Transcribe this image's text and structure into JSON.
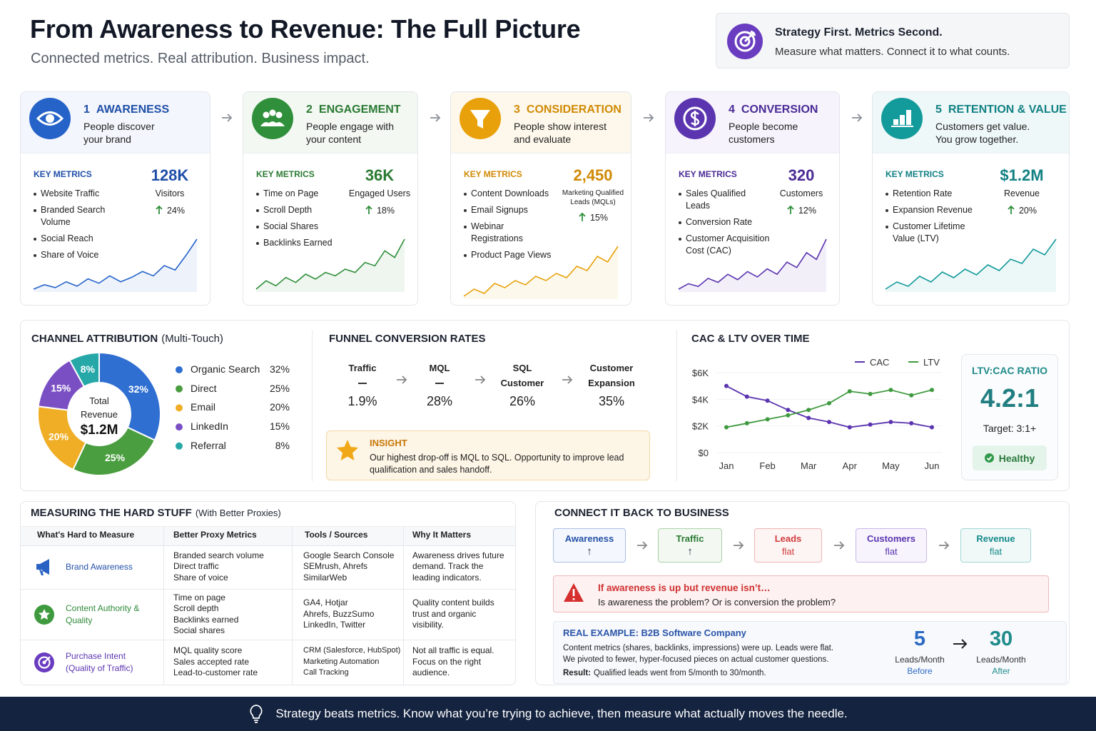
{
  "header": {
    "title": "From Awareness to Revenue: The Full Picture",
    "subtitle": "Connected metrics. Real attribution. Business impact."
  },
  "callout": {
    "title": "Strategy First. Metrics Second.",
    "text": "Measure what matters. Connect it to what counts."
  },
  "stages": [
    {
      "number": "1",
      "name": "AWARENESS",
      "description": [
        "People discover",
        "your brand"
      ],
      "metrics_label": "KEY METRICS",
      "metrics": [
        "Website Traffic",
        "Branded Search Volume",
        "Social Reach",
        "Share of Voice"
      ],
      "value": "128K",
      "value_label": "Visitors",
      "change": "24%",
      "trend": [
        12,
        18,
        14,
        22,
        16,
        26,
        20,
        30,
        22,
        28,
        36,
        30,
        44,
        38,
        58,
        80
      ]
    },
    {
      "number": "2",
      "name": "ENGAGEMENT",
      "description": [
        "People engage with",
        "your content"
      ],
      "metrics_label": "KEY METRICS",
      "metrics": [
        "Time on Page",
        "Scroll Depth",
        "Social Shares",
        "Backlinks Earned"
      ],
      "value": "36K",
      "value_label": "Engaged Users",
      "change": "18%",
      "trend": [
        10,
        20,
        14,
        24,
        18,
        28,
        22,
        30,
        26,
        34,
        30,
        42,
        38,
        56,
        48,
        70
      ]
    },
    {
      "number": "3",
      "name": "CONSIDERATION",
      "description": [
        "People show interest",
        "and evaluate"
      ],
      "metrics_label": "KEY METRICS",
      "metrics": [
        "Content Downloads",
        "Email Signups",
        "Webinar Registrations",
        "Product Page Views"
      ],
      "value": "2,450",
      "value_label": "Marketing Qualified Leads (MQLs)",
      "change": "15%",
      "trend": [
        8,
        18,
        12,
        26,
        20,
        30,
        24,
        36,
        30,
        40,
        34,
        50,
        44,
        64,
        56,
        78
      ]
    },
    {
      "number": "4",
      "name": "CONVERSION",
      "description": [
        "People become",
        "customers"
      ],
      "metrics_label": "KEY METRICS",
      "metrics": [
        "Sales Qualified Leads",
        "Conversion Rate",
        "Customer Acquisition Cost (CAC)"
      ],
      "value": "320",
      "value_label": "Customers",
      "change": "12%",
      "trend": [
        8,
        16,
        12,
        24,
        18,
        30,
        22,
        34,
        26,
        38,
        30,
        48,
        40,
        62,
        52,
        82
      ]
    },
    {
      "number": "5",
      "name": "RETENTION & VALUE",
      "description": [
        "Customers get value.",
        "You grow together."
      ],
      "metrics_label": "KEY METRICS",
      "metrics": [
        "Retention Rate",
        "Expansion Revenue",
        "Customer Lifetime Value (LTV)"
      ],
      "value": "$1.2M",
      "value_label": "Revenue",
      "change": "20%",
      "trend": [
        10,
        20,
        14,
        28,
        20,
        34,
        26,
        38,
        30,
        44,
        36,
        52,
        46,
        66,
        58,
        80
      ]
    }
  ],
  "attribution": {
    "type": "pie",
    "title": "CHANNEL ATTRIBUTION",
    "subtitle": "(Multi-Touch)",
    "center_label": "Total Revenue",
    "center_value": "$1.2M",
    "categories": [
      "Organic Search",
      "Direct",
      "Email",
      "LinkedIn",
      "Referral"
    ],
    "values": [
      32,
      25,
      20,
      15,
      8
    ],
    "value_labels": [
      "32%",
      "25%",
      "20%",
      "15%",
      "8%"
    ],
    "colors": [
      "#2f6fd1",
      "#4a9e3f",
      "#efae25",
      "#7a4fc4",
      "#27a8a8"
    ]
  },
  "funnel": {
    "title": "FUNNEL CONVERSION RATES",
    "steps": [
      {
        "label": "Traffic",
        "value": "1.9%"
      },
      {
        "label": "MQL",
        "value": "28%"
      },
      {
        "label": "SQL Customer",
        "value": "26%"
      },
      {
        "label": "Customer Expansion",
        "value": "35%"
      }
    ],
    "insight": {
      "label": "INSIGHT",
      "text": "Our highest drop-off is MQL to SQL. Opportunity to improve lead qualification and sales handoff."
    }
  },
  "cac_ltv": {
    "type": "line",
    "title": "CAC & LTV OVER TIME",
    "categories": [
      "Jan",
      null,
      "Feb",
      null,
      "Mar",
      null,
      "Apr",
      null,
      "May",
      null,
      "Jun"
    ],
    "series": [
      {
        "name": "CAC",
        "color": "#5b34b0",
        "values": [
          5000,
          4200,
          3900,
          3200,
          2600,
          2300,
          1900,
          2100,
          2300,
          2200,
          1900
        ]
      },
      {
        "name": "LTV",
        "color": "#3f9a3f",
        "values": [
          1900,
          2200,
          2500,
          2800,
          3200,
          3700,
          4600,
          4400,
          4700,
          4300,
          4700
        ]
      }
    ],
    "ylim": [
      0,
      6000
    ],
    "yticks": [
      {
        "value": 0,
        "label": "$0"
      },
      {
        "value": 2000,
        "label": "$2K"
      },
      {
        "value": 4000,
        "label": "$4K"
      },
      {
        "value": 6000,
        "label": "$6K"
      }
    ]
  },
  "ratio": {
    "title": "LTV:CAC RATIO",
    "value": "4.2:1",
    "target": "Target: 3:1+",
    "status": "Healthy"
  },
  "hard_stuff": {
    "title": "MEASURING THE HARD STUFF",
    "subtitle": "(With Better Proxies)",
    "columns": [
      "What's Hard to Measure",
      "Better Proxy Metrics",
      "Tools / Sources",
      "Why It Matters"
    ],
    "rows": [
      {
        "name": "Brand Awareness",
        "proxies": [
          "Branded search volume",
          "Direct traffic",
          "Share of voice"
        ],
        "tools": [
          "Google Search Console",
          "SEMrush, Ahrefs",
          "SimilarWeb"
        ],
        "why": "Awareness drives future demand. Track the leading indicators."
      },
      {
        "name": "Content Authority & Quality",
        "proxies": [
          "Time on page",
          "Scroll depth",
          "Backlinks earned",
          "Social shares"
        ],
        "tools": [
          "GA4, Hotjar",
          "Ahrefs, BuzzSumo",
          "LinkedIn, Twitter"
        ],
        "why": "Quality content builds trust and organic visibility."
      },
      {
        "name": "Purchase Intent (Quality of Traffic)",
        "proxies": [
          "MQL quality score",
          "Sales accepted rate",
          "Lead-to-customer rate"
        ],
        "tools": [
          "CRM (Salesforce, HubSpot)",
          "Marketing Automation",
          "Call Tracking"
        ],
        "why": "Not all traffic is equal. Focus on the right audience."
      }
    ]
  },
  "business": {
    "title": "CONNECT IT BACK TO BUSINESS",
    "flow": [
      {
        "label": "Awareness",
        "status": "↑"
      },
      {
        "label": "Traffic",
        "status": "↑"
      },
      {
        "label": "Leads",
        "status": "flat"
      },
      {
        "label": "Customers",
        "status": "flat"
      },
      {
        "label": "Revenue",
        "status": "flat"
      }
    ],
    "alert": {
      "title": "If awareness is up but revenue isn’t…",
      "text": "Is awareness the problem? Or is conversion the problem?"
    },
    "example": {
      "label": "REAL EXAMPLE: B2B Software Company",
      "lines": [
        "Content metrics (shares, backlinks, impressions) were up. Leads were flat.",
        "We pivoted to fewer, hyper-focused pieces on actual customer questions."
      ],
      "result_label": "Result:",
      "result": "Qualified leads went from 5/month to 30/month.",
      "before": {
        "value": "5",
        "unit": "Leads/Month",
        "label": "Before"
      },
      "after": {
        "value": "30",
        "unit": "Leads/Month",
        "label": "After"
      }
    }
  },
  "footer": {
    "text": "Strategy beats metrics. Know what you’re trying to achieve, then measure what actually moves the needle."
  }
}
